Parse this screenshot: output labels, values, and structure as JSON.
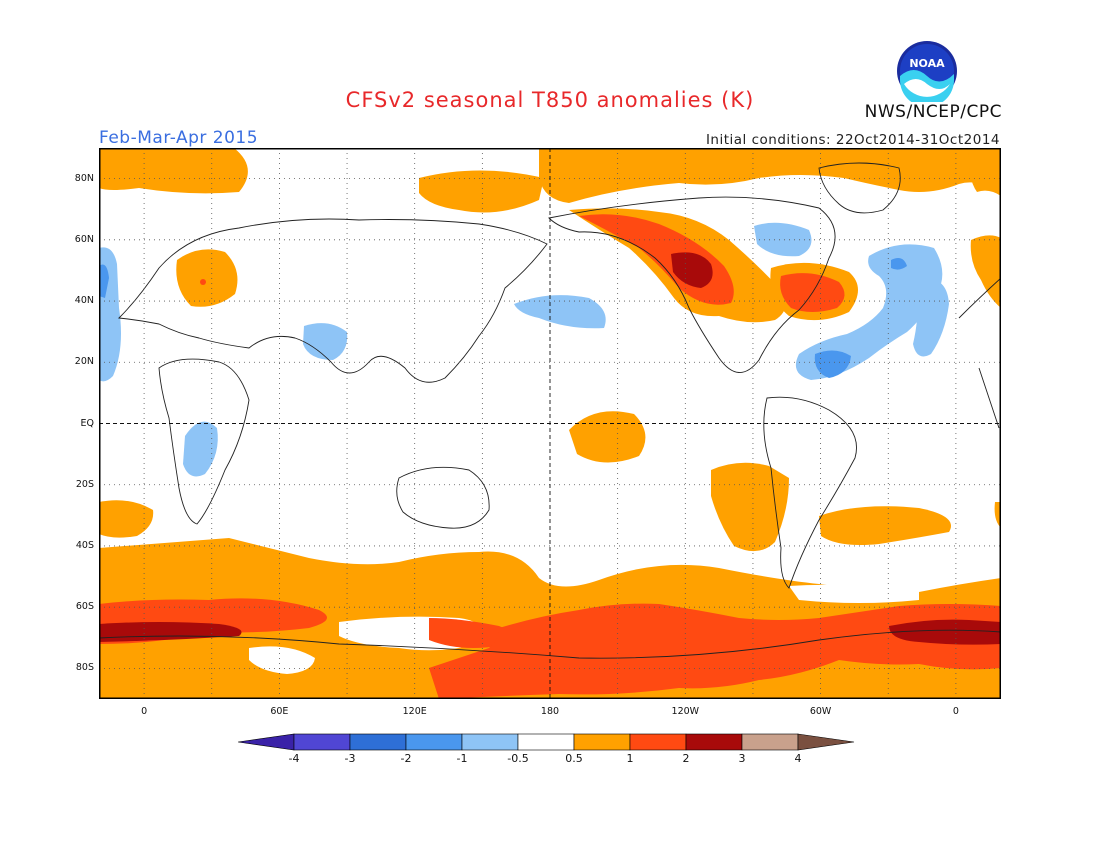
{
  "header": {
    "title": "CFSv2 seasonal T850 anomalies (K)",
    "season": "Feb-Mar-Apr 2015",
    "initial_conditions": "Initial conditions: 22Oct2014-31Oct2014",
    "agency": "NWS/NCEP/CPC",
    "logo_text": "NOAA"
  },
  "axes": {
    "lat_ticks": [
      "80N",
      "60N",
      "40N",
      "20N",
      "EQ",
      "20S",
      "40S",
      "60S",
      "80S"
    ],
    "lat_values": [
      80,
      60,
      40,
      20,
      0,
      -20,
      -40,
      -60,
      -80
    ],
    "lon_ticks": [
      "0",
      "60E",
      "120E",
      "180",
      "120W",
      "60W",
      "0"
    ],
    "lon_values": [
      0,
      60,
      120,
      180,
      240,
      300,
      360
    ],
    "lon_range": [
      -20,
      380
    ],
    "lat_range": [
      -90,
      90
    ]
  },
  "colorbar": {
    "labels": [
      "-4",
      "-3",
      "-2",
      "-1",
      "-0.5",
      "0.5",
      "1",
      "2",
      "3",
      "4"
    ],
    "colors": [
      "#3a22a8",
      "#5046d4",
      "#2e6fd6",
      "#4a97ee",
      "#8ec4f6",
      "#ffffff",
      "#ffa100",
      "#ff4a12",
      "#a80a0a",
      "#c9a18c",
      "#7a5040"
    ]
  },
  "colors": {
    "warm1": "#ffa100",
    "warm2": "#ff4a12",
    "warm3": "#a80a0a",
    "cool1": "#8ec4f6",
    "cool2": "#4a97ee"
  }
}
